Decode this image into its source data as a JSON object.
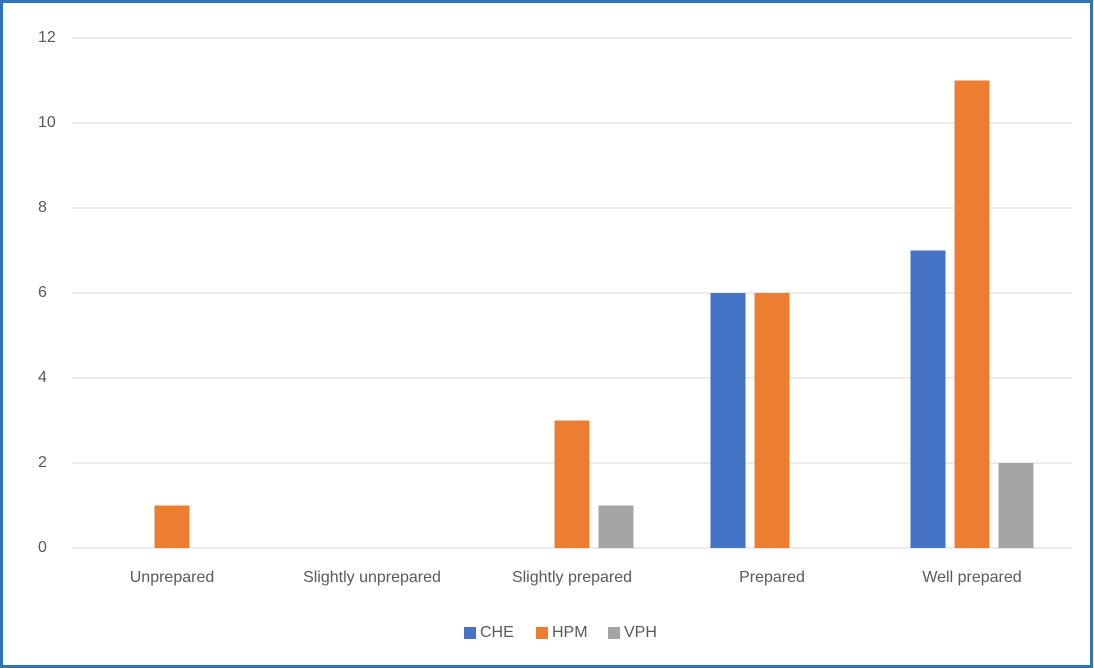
{
  "chart_data": {
    "type": "bar",
    "categories": [
      "Unprepared",
      "Slightly unprepared",
      "Slightly prepared",
      "Prepared",
      "Well prepared"
    ],
    "series": [
      {
        "name": "CHE",
        "color": "#4472c4",
        "values": [
          0,
          0,
          0,
          6,
          7
        ]
      },
      {
        "name": "HPM",
        "color": "#ed7d31",
        "values": [
          1,
          0,
          3,
          6,
          11
        ]
      },
      {
        "name": "VPH",
        "color": "#a5a5a5",
        "values": [
          0,
          0,
          1,
          0,
          2
        ]
      }
    ],
    "ylim": [
      0,
      12
    ],
    "yticks": [
      0,
      2,
      4,
      6,
      8,
      10,
      12
    ],
    "grid": true,
    "legend": "bottom"
  }
}
